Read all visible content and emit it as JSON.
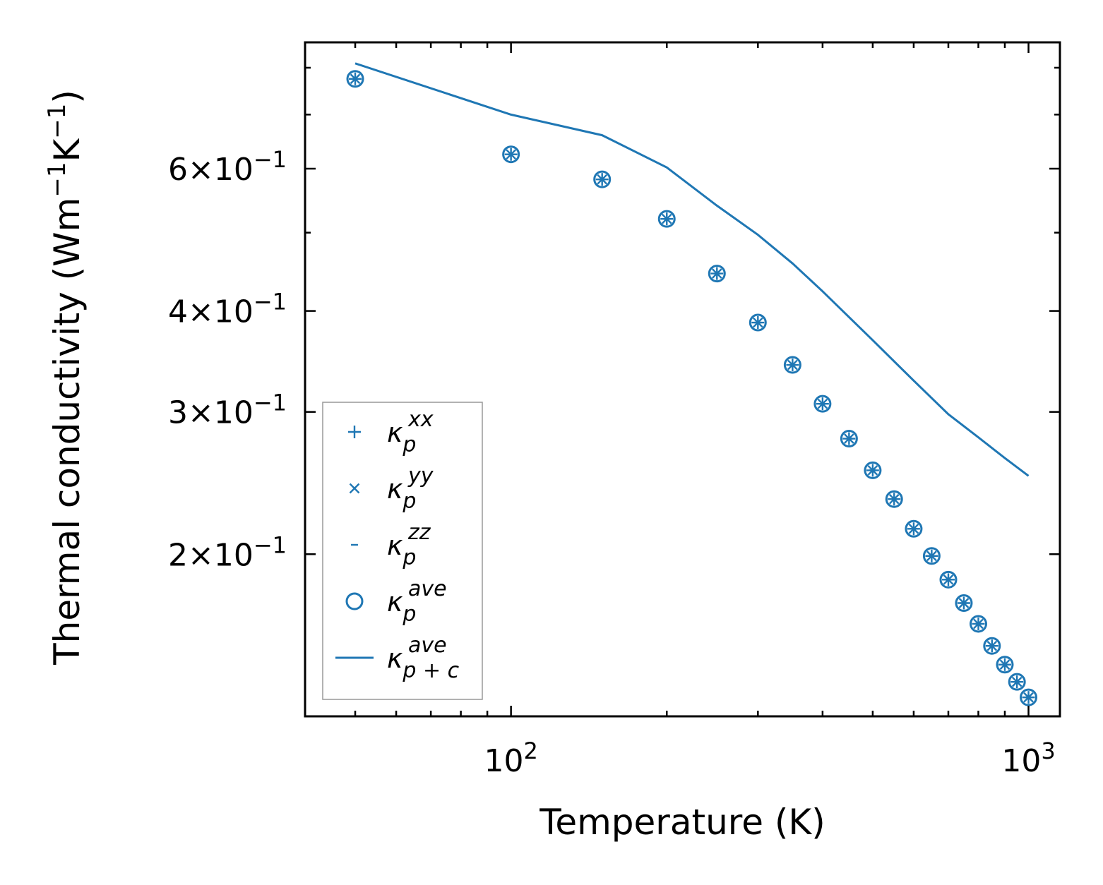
{
  "chart_data": {
    "type": "scatter",
    "xlabel": "Temperature (K)",
    "ylabel_text": "Thermal conductivity (Wm",
    "ylabel_exp1": "−1",
    "ylabel_mid": "K",
    "ylabel_exp2": "−1",
    "ylabel_close": ")",
    "x_scale": "log",
    "y_scale": "log",
    "xlim": [
      40,
      1150
    ],
    "ylim": [
      0.126,
      0.86
    ],
    "grid": false,
    "legend_position": "lower left",
    "accent_color": "#1f77b4",
    "x_ticks": [
      {
        "value": 100,
        "base": "10",
        "exp": "2"
      },
      {
        "value": 1000,
        "base": "10",
        "exp": "3"
      }
    ],
    "y_ticks": [
      {
        "value": 0.2,
        "mant": "2",
        "times": "×",
        "base": "10",
        "exp": "−1"
      },
      {
        "value": 0.3,
        "mant": "3",
        "times": "×",
        "base": "10",
        "exp": "−1"
      },
      {
        "value": 0.4,
        "mant": "4",
        "times": "×",
        "base": "10",
        "exp": "−1"
      },
      {
        "value": 0.6,
        "mant": "6",
        "times": "×",
        "base": "10",
        "exp": "−1"
      }
    ],
    "x": [
      50,
      100,
      150,
      200,
      250,
      300,
      350,
      400,
      450,
      500,
      550,
      600,
      650,
      700,
      750,
      800,
      850,
      900,
      950,
      1000
    ],
    "series": [
      {
        "name": "κ_p^xx",
        "marker": "plus",
        "values": [
          0.775,
          0.625,
          0.582,
          0.52,
          0.445,
          0.387,
          0.343,
          0.307,
          0.278,
          0.254,
          0.234,
          0.215,
          0.199,
          0.186,
          0.174,
          0.164,
          0.154,
          0.146,
          0.139,
          0.133
        ]
      },
      {
        "name": "κ_p^yy",
        "marker": "x",
        "values": [
          0.775,
          0.625,
          0.582,
          0.52,
          0.445,
          0.387,
          0.343,
          0.307,
          0.278,
          0.254,
          0.234,
          0.215,
          0.199,
          0.186,
          0.174,
          0.164,
          0.154,
          0.146,
          0.139,
          0.133
        ]
      },
      {
        "name": "κ_p^zz",
        "marker": "dash",
        "values": [
          0.775,
          0.625,
          0.582,
          0.52,
          0.445,
          0.387,
          0.343,
          0.307,
          0.278,
          0.254,
          0.234,
          0.215,
          0.199,
          0.186,
          0.174,
          0.164,
          0.154,
          0.146,
          0.139,
          0.133
        ]
      },
      {
        "name": "κ_p^ave",
        "marker": "circle",
        "values": [
          0.775,
          0.625,
          0.582,
          0.52,
          0.445,
          0.387,
          0.343,
          0.307,
          0.278,
          0.254,
          0.234,
          0.215,
          0.199,
          0.186,
          0.174,
          0.164,
          0.154,
          0.146,
          0.139,
          0.133
        ]
      },
      {
        "name": "κ_p+c^ave",
        "marker": "line",
        "x": [
          50,
          100,
          150,
          200,
          250,
          300,
          350,
          400,
          500,
          600,
          700,
          800,
          900,
          1000
        ],
        "values": [
          0.81,
          0.7,
          0.66,
          0.602,
          0.54,
          0.497,
          0.458,
          0.423,
          0.368,
          0.328,
          0.298,
          0.279,
          0.263,
          0.25
        ]
      }
    ],
    "legend": [
      {
        "marker": "plus",
        "base": "κ",
        "sub": "p",
        "sup": "xx"
      },
      {
        "marker": "x",
        "base": "κ",
        "sub": "p",
        "sup": "yy"
      },
      {
        "marker": "dash",
        "base": "κ",
        "sub": "p",
        "sup": "zz"
      },
      {
        "marker": "circle",
        "base": "κ",
        "sub": "p",
        "sup": "ave"
      },
      {
        "marker": "line",
        "base": "κ",
        "sub": "p + c",
        "sup": "ave"
      }
    ]
  }
}
